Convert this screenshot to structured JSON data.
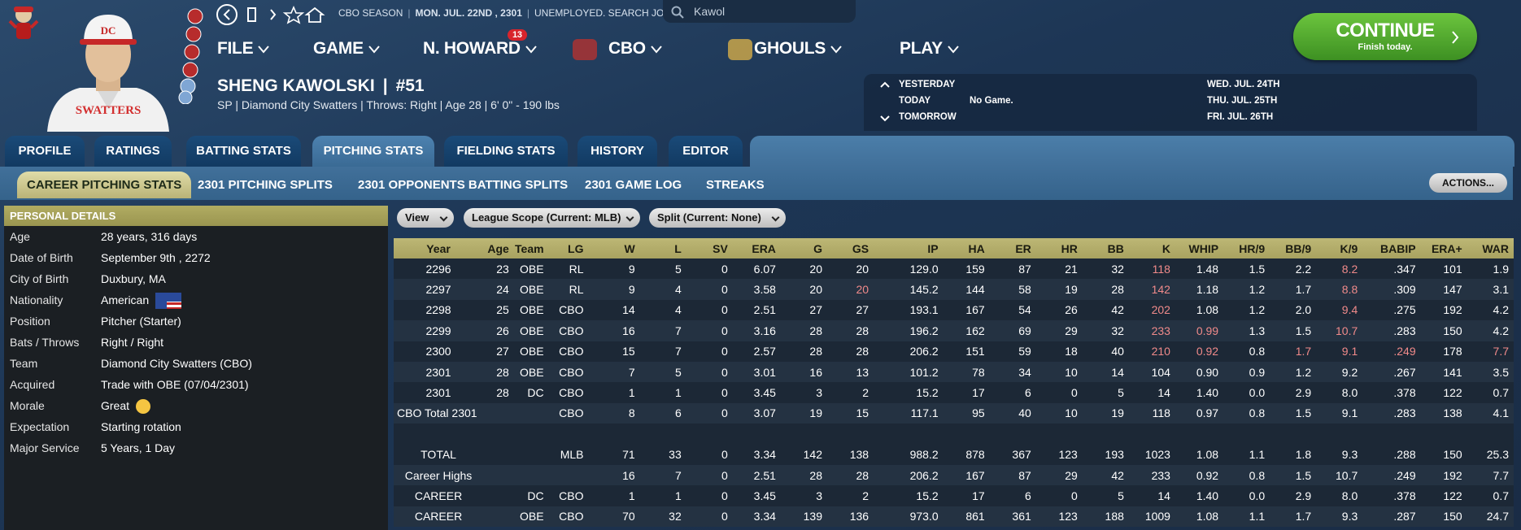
{
  "header": {
    "season": "CBO SEASON",
    "date": "MON. JUL. 22ND , 2301",
    "status": "UNEMPLOYED. SEARCH JOBS...",
    "search": "Kawol",
    "menu": [
      {
        "label": "FILE"
      },
      {
        "label": "GAME"
      },
      {
        "label": "N. HOWARD",
        "badge": "13"
      },
      {
        "label": "CBO"
      },
      {
        "label": "GHOULS"
      },
      {
        "label": "PLAY"
      }
    ],
    "continue": {
      "label": "CONTINUE",
      "sub": "Finish today."
    }
  },
  "player": {
    "name": "SHENG KAWOLSKI",
    "number": "#51",
    "info": "SP | Diamond City Swatters | Throws: Right | Age 28 | 6' 0\" - 190 lbs"
  },
  "calendar": {
    "yesterday": "YESTERDAY",
    "today": "TODAY",
    "today_note": "No Game.",
    "tomorrow": "TOMORROW",
    "upcoming": [
      "WED. JUL. 24TH",
      "THU. JUL. 25TH",
      "FRI. JUL. 26TH"
    ]
  },
  "tabs": {
    "items": [
      "PROFILE",
      "RATINGS",
      "BATTING STATS",
      "PITCHING STATS",
      "FIELDING STATS",
      "HISTORY",
      "EDITOR"
    ],
    "active": 3
  },
  "subtabs": {
    "items": [
      "CAREER PITCHING STATS",
      "2301 PITCHING SPLITS",
      "2301 OPPONENTS BATTING SPLITS",
      "2301 GAME LOG",
      "STREAKS"
    ],
    "active": 0,
    "actions": "ACTIONS..."
  },
  "details": {
    "title": "PERSONAL DETAILS",
    "rows": [
      [
        "Age",
        "28 years, 316 days"
      ],
      [
        "Date of Birth",
        "September 9th , 2272"
      ],
      [
        "City of Birth",
        "Duxbury, MA"
      ],
      [
        "Nationality",
        "American"
      ],
      [
        "Position",
        "Pitcher (Starter)"
      ],
      [
        "Bats / Throws",
        "Right / Right"
      ],
      [
        "Team",
        "Diamond City Swatters (CBO)"
      ],
      [
        "Acquired",
        "Trade with OBE (07/04/2301)"
      ],
      [
        "Morale",
        "Great"
      ],
      [
        "Expectation",
        "Starting rotation"
      ],
      [
        "Major Service",
        "5 Years, 1 Day"
      ]
    ]
  },
  "filters": [
    "View",
    "League Scope (Current: MLB)",
    "Split (Current: None)"
  ],
  "table": {
    "columns": [
      "Year",
      "Age",
      "Team",
      "LG",
      "W",
      "L",
      "SV",
      "ERA",
      "G",
      "GS",
      "IP",
      "HA",
      "ER",
      "HR",
      "BB",
      "K",
      "WHIP",
      "HR/9",
      "BB/9",
      "K/9",
      "BABIP",
      "ERA+",
      "WAR"
    ],
    "rows": [
      [
        "2296",
        "23",
        "OBE",
        "RL",
        "9",
        "5",
        "0",
        "6.07",
        "20",
        "20",
        "129.0",
        "159",
        "87",
        "21",
        "32",
        "118",
        "1.48",
        "1.5",
        "2.2",
        "8.2",
        ".347",
        "101",
        "1.9"
      ],
      [
        "2297",
        "24",
        "OBE",
        "RL",
        "9",
        "4",
        "0",
        "3.58",
        "20",
        "20",
        "145.2",
        "144",
        "58",
        "19",
        "28",
        "142",
        "1.18",
        "1.2",
        "1.7",
        "8.8",
        ".309",
        "147",
        "3.1"
      ],
      [
        "2298",
        "25",
        "OBE",
        "CBO",
        "14",
        "4",
        "0",
        "2.51",
        "27",
        "27",
        "193.1",
        "167",
        "54",
        "26",
        "42",
        "202",
        "1.08",
        "1.2",
        "2.0",
        "9.4",
        ".275",
        "192",
        "4.2"
      ],
      [
        "2299",
        "26",
        "OBE",
        "CBO",
        "16",
        "7",
        "0",
        "3.16",
        "28",
        "28",
        "196.2",
        "162",
        "69",
        "29",
        "32",
        "233",
        "0.99",
        "1.3",
        "1.5",
        "10.7",
        ".283",
        "150",
        "4.2"
      ],
      [
        "2300",
        "27",
        "OBE",
        "CBO",
        "15",
        "7",
        "0",
        "2.57",
        "28",
        "28",
        "206.2",
        "151",
        "59",
        "18",
        "40",
        "210",
        "0.92",
        "0.8",
        "1.7",
        "9.1",
        ".249",
        "178",
        "7.7"
      ],
      [
        "2301",
        "28",
        "OBE",
        "CBO",
        "7",
        "5",
        "0",
        "3.01",
        "16",
        "13",
        "101.2",
        "78",
        "34",
        "10",
        "14",
        "104",
        "0.90",
        "0.9",
        "1.2",
        "9.2",
        ".267",
        "141",
        "3.5"
      ],
      [
        "2301",
        "28",
        "DC",
        "CBO",
        "1",
        "1",
        "0",
        "3.45",
        "3",
        "2",
        "15.2",
        "17",
        "6",
        "0",
        "5",
        "14",
        "1.40",
        "0.0",
        "2.9",
        "8.0",
        ".378",
        "122",
        "0.7"
      ],
      [
        "CBO Total 2301",
        null,
        null,
        "CBO",
        "8",
        "6",
        "0",
        "3.07",
        "19",
        "15",
        "117.1",
        "95",
        "40",
        "10",
        "19",
        "118",
        "0.97",
        "0.8",
        "1.5",
        "9.1",
        ".283",
        "138",
        "4.1"
      ]
    ],
    "summary_rows": [
      [
        "TOTAL",
        null,
        null,
        "MLB",
        "71",
        "33",
        "0",
        "3.34",
        "142",
        "138",
        "988.2",
        "878",
        "367",
        "123",
        "193",
        "1023",
        "1.08",
        "1.1",
        "1.8",
        "9.3",
        ".288",
        "150",
        "25.3"
      ],
      [
        "Career Highs",
        null,
        null,
        null,
        "16",
        "7",
        "0",
        "2.51",
        "28",
        "28",
        "206.2",
        "167",
        "87",
        "29",
        "42",
        "233",
        "0.92",
        "0.8",
        "1.5",
        "10.7",
        ".249",
        "192",
        "7.7"
      ],
      [
        "CAREER",
        null,
        "DC",
        "CBO",
        "1",
        "1",
        "0",
        "3.45",
        "3",
        "2",
        "15.2",
        "17",
        "6",
        "0",
        "5",
        "14",
        "1.40",
        "0.0",
        "2.9",
        "8.0",
        ".378",
        "122",
        "0.7"
      ],
      [
        "CAREER",
        null,
        "OBE",
        "CBO",
        "70",
        "32",
        "0",
        "3.34",
        "139",
        "136",
        "973.0",
        "861",
        "361",
        "123",
        "188",
        "1009",
        "1.08",
        "1.1",
        "1.7",
        "9.3",
        ".287",
        "150",
        "24.7"
      ]
    ],
    "highlight_color": "#f08a8a",
    "highlighted": [
      [
        0,
        15
      ],
      [
        0,
        19
      ],
      [
        1,
        9
      ],
      [
        1,
        15
      ],
      [
        1,
        19
      ],
      [
        2,
        15
      ],
      [
        2,
        19
      ],
      [
        3,
        15
      ],
      [
        3,
        16
      ],
      [
        3,
        19
      ],
      [
        4,
        15
      ],
      [
        4,
        16
      ],
      [
        4,
        18
      ],
      [
        4,
        19
      ],
      [
        4,
        20
      ],
      [
        4,
        22
      ]
    ]
  }
}
